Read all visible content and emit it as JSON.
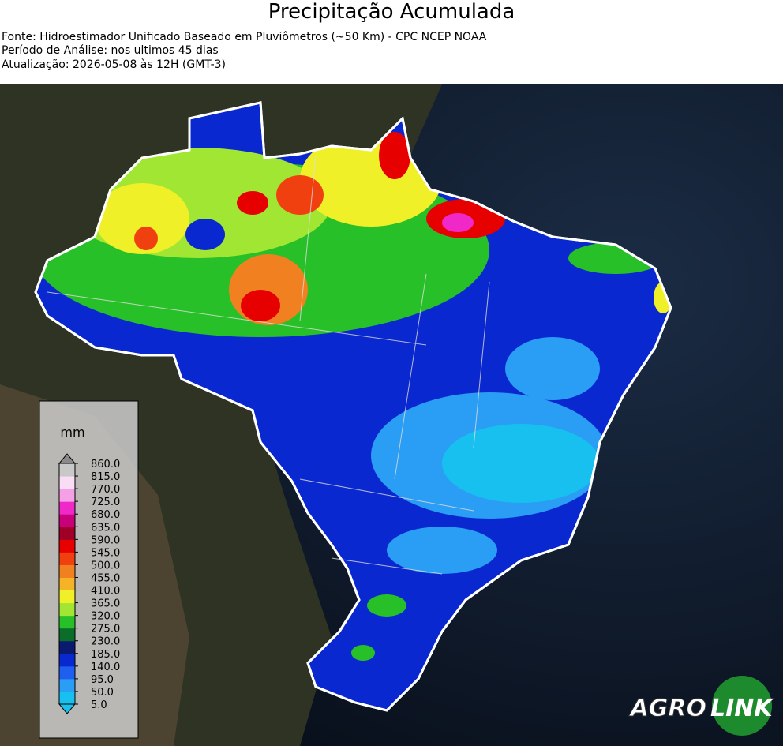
{
  "header": {
    "title": "Precipitação Acumulada",
    "source": "Fonte: Hidroestimador Unificado Baseado em Pluviômetros (~50 Km) - CPC NCEP NOAA",
    "period": "Período de Análise: nos ultimos 45 dias",
    "updated": "Atualização: 2026-05-08 às 12H (GMT-3)"
  },
  "legend": {
    "unit": "mm",
    "ticks": [
      "5.0",
      "50.0",
      "95.0",
      "140.0",
      "185.0",
      "230.0",
      "275.0",
      "320.0",
      "365.0",
      "410.0",
      "455.0",
      "500.0",
      "545.0",
      "590.0",
      "635.0",
      "680.0",
      "725.0",
      "770.0",
      "815.0",
      "860.0"
    ],
    "colors": [
      "#18c0f0",
      "#2a9df4",
      "#1e5ff0",
      "#0a28d0",
      "#0a1a6e",
      "#0a6e2a",
      "#28c028",
      "#a0e632",
      "#f0f028",
      "#f5b428",
      "#f08020",
      "#f04010",
      "#e60000",
      "#a00028",
      "#c8007a",
      "#f028c8",
      "#f5a0e6",
      "#fadcf5",
      "#c8c8c8"
    ],
    "extend_colors": [
      "#18c0f0",
      "#8a8a8a"
    ]
  },
  "logo": {
    "left": "AGRO",
    "right": "LINK"
  }
}
